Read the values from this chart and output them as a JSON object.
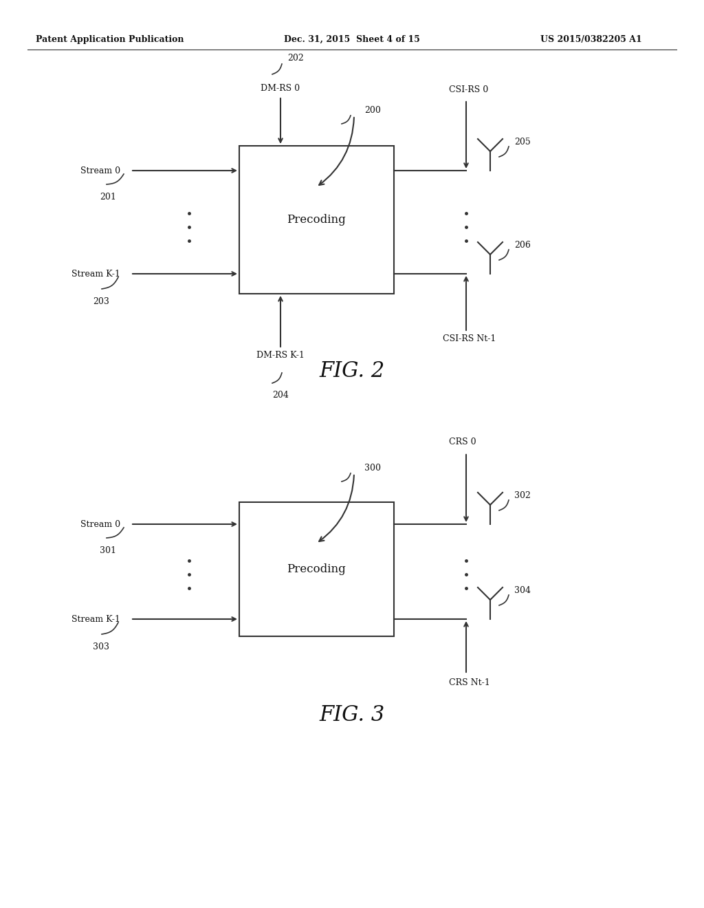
{
  "bg_color": "#ffffff",
  "header_left": "Patent Application Publication",
  "header_mid": "Dec. 31, 2015  Sheet 4 of 15",
  "header_right": "US 2015/0382205 A1",
  "fig2_label": "FIG. 2",
  "fig3_label": "FIG. 3",
  "fig2_box_label": "Precoding",
  "fig3_box_label": "Precoding",
  "line_color": "#333333",
  "text_color": "#111111"
}
